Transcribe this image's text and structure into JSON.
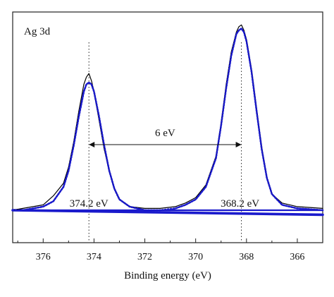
{
  "chart_data": {
    "type": "line",
    "title": "Ag 3d",
    "xlabel": "Binding energy (eV)",
    "ylabel": "",
    "xlim": [
      377.2,
      365.0
    ],
    "x_reversed": true,
    "ylim": [
      0,
      1.1
    ],
    "grid": false,
    "legend": "none",
    "x_ticks": [
      376,
      374,
      372,
      370,
      368,
      366
    ],
    "peaks": [
      {
        "label": "374.2 eV",
        "position": 374.2
      },
      {
        "label": "368.2 eV",
        "position": 368.2
      }
    ],
    "splitting": {
      "label": "6 eV",
      "from": 374.2,
      "to": 368.2
    },
    "series": [
      {
        "role": "raw-data",
        "color": "#000000",
        "style": "solid",
        "x": [
          377.2,
          376.8,
          376.4,
          376.0,
          375.6,
          375.2,
          375.0,
          374.8,
          374.6,
          374.4,
          374.3,
          374.2,
          374.1,
          374.0,
          373.8,
          373.6,
          373.4,
          373.2,
          373.0,
          372.6,
          372.0,
          371.4,
          370.8,
          370.4,
          370.0,
          369.6,
          369.2,
          369.0,
          368.8,
          368.6,
          368.4,
          368.3,
          368.2,
          368.1,
          368.0,
          367.8,
          367.6,
          367.4,
          367.2,
          367.0,
          366.6,
          366.0,
          365.0
        ],
        "y": [
          0.0,
          0.01,
          0.02,
          0.03,
          0.08,
          0.15,
          0.24,
          0.38,
          0.55,
          0.7,
          0.74,
          0.76,
          0.72,
          0.66,
          0.5,
          0.34,
          0.22,
          0.12,
          0.06,
          0.02,
          0.01,
          0.01,
          0.02,
          0.04,
          0.07,
          0.14,
          0.3,
          0.48,
          0.7,
          0.88,
          0.99,
          1.02,
          1.03,
          1.0,
          0.95,
          0.78,
          0.56,
          0.35,
          0.18,
          0.09,
          0.04,
          0.02,
          0.01
        ]
      },
      {
        "role": "fit-total",
        "color": "#1a1acc",
        "style": "dotted",
        "x": [
          377.2,
          376.8,
          376.4,
          376.0,
          375.6,
          375.2,
          375.0,
          374.8,
          374.6,
          374.4,
          374.3,
          374.2,
          374.1,
          374.0,
          373.8,
          373.6,
          373.4,
          373.2,
          373.0,
          372.6,
          372.0,
          371.4,
          370.8,
          370.4,
          370.0,
          369.6,
          369.2,
          369.0,
          368.8,
          368.6,
          368.4,
          368.3,
          368.2,
          368.1,
          368.0,
          367.8,
          367.6,
          367.4,
          367.2,
          367.0,
          366.6,
          366.0,
          365.0
        ],
        "y": [
          0.0,
          0.0,
          0.01,
          0.02,
          0.05,
          0.13,
          0.22,
          0.36,
          0.52,
          0.66,
          0.7,
          0.71,
          0.7,
          0.66,
          0.52,
          0.36,
          0.22,
          0.12,
          0.06,
          0.02,
          0.0,
          0.0,
          0.01,
          0.03,
          0.06,
          0.13,
          0.29,
          0.47,
          0.68,
          0.86,
          0.98,
          1.0,
          1.01,
          0.99,
          0.94,
          0.77,
          0.55,
          0.34,
          0.18,
          0.09,
          0.03,
          0.01,
          0.0
        ]
      },
      {
        "role": "fit-component-1",
        "color": "#1a1acc",
        "style": "solid",
        "x": [
          377.2,
          376.8,
          376.4,
          376.0,
          375.6,
          375.2,
          375.0,
          374.8,
          374.6,
          374.4,
          374.3,
          374.2,
          374.1,
          374.0,
          373.8,
          373.6,
          373.4,
          373.2,
          373.0,
          372.6,
          372.0,
          371.0,
          370.0,
          369.0,
          368.0,
          367.0,
          366.0,
          365.0
        ],
        "y": [
          0.0,
          0.0,
          0.01,
          0.02,
          0.05,
          0.13,
          0.22,
          0.36,
          0.52,
          0.66,
          0.7,
          0.71,
          0.7,
          0.66,
          0.52,
          0.36,
          0.22,
          0.12,
          0.06,
          0.02,
          0.0,
          0.0,
          0.0,
          0.0,
          0.0,
          0.0,
          0.0,
          0.0
        ]
      },
      {
        "role": "fit-component-2",
        "color": "#1a1acc",
        "style": "solid",
        "x": [
          377.2,
          376.0,
          375.0,
          374.0,
          373.0,
          372.0,
          371.0,
          370.4,
          370.0,
          369.6,
          369.2,
          369.0,
          368.8,
          368.6,
          368.4,
          368.3,
          368.2,
          368.1,
          368.0,
          367.8,
          367.6,
          367.4,
          367.2,
          367.0,
          366.6,
          366.0,
          365.0
        ],
        "y": [
          0.0,
          0.0,
          0.0,
          0.0,
          0.0,
          0.0,
          0.0,
          0.03,
          0.06,
          0.13,
          0.29,
          0.47,
          0.68,
          0.86,
          0.98,
          1.0,
          1.01,
          0.99,
          0.94,
          0.77,
          0.55,
          0.34,
          0.18,
          0.09,
          0.03,
          0.01,
          0.0
        ]
      },
      {
        "role": "background",
        "color": "#1a1acc",
        "style": "solid",
        "x": [
          377.2,
          365.0
        ],
        "y": [
          0.0,
          -0.025
        ]
      }
    ]
  }
}
